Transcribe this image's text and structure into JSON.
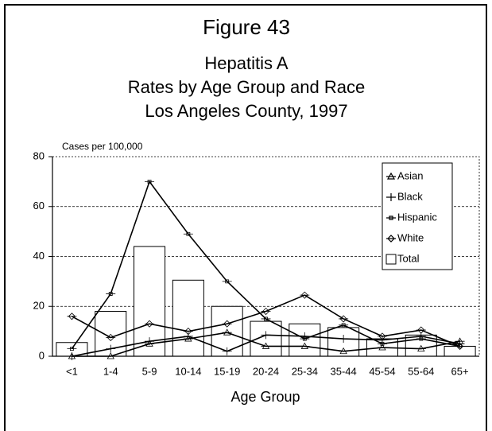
{
  "chart_data": {
    "type": "bar_line",
    "title": "Figure 43",
    "subtitle": [
      "Hepatitis A",
      "Rates by Age Group and Race",
      "Los Angeles County, 1997"
    ],
    "y_label": "Cases per 100,000",
    "x_label": "Age Group",
    "categories": [
      "<1",
      "1-4",
      "5-9",
      "10-14",
      "15-19",
      "20-24",
      "25-34",
      "35-44",
      "45-54",
      "55-64",
      "65+"
    ],
    "series": [
      {
        "name": "Asian",
        "type": "line",
        "color": "#000000",
        "values": [
          0,
          0,
          5,
          7,
          9.5,
          4,
          4,
          2,
          3.5,
          3,
          6
        ]
      },
      {
        "name": "Black",
        "type": "line",
        "color": "#000000",
        "values": [
          0,
          3,
          6,
          8,
          2,
          8.5,
          8,
          7,
          6.5,
          8,
          5
        ]
      },
      {
        "name": "Hispanic",
        "type": "line",
        "color": "#000000",
        "values": [
          3,
          25,
          70,
          49,
          30,
          15,
          7,
          12.5,
          5,
          7,
          4
        ]
      },
      {
        "name": "White",
        "type": "line",
        "color": "#000000",
        "values": [
          16,
          7.5,
          13,
          10,
          13,
          18,
          24.5,
          15,
          8,
          10.5,
          4
        ]
      },
      {
        "name": "Total",
        "type": "bar",
        "color": "#ffffff",
        "values": [
          5.5,
          18,
          44,
          30.5,
          20,
          14,
          13,
          11.5,
          7,
          8.5,
          4
        ]
      }
    ],
    "ylim": [
      0,
      80
    ],
    "yticks": [
      0,
      20,
      40,
      60,
      80
    ],
    "grid": true,
    "legend": "top-right"
  }
}
